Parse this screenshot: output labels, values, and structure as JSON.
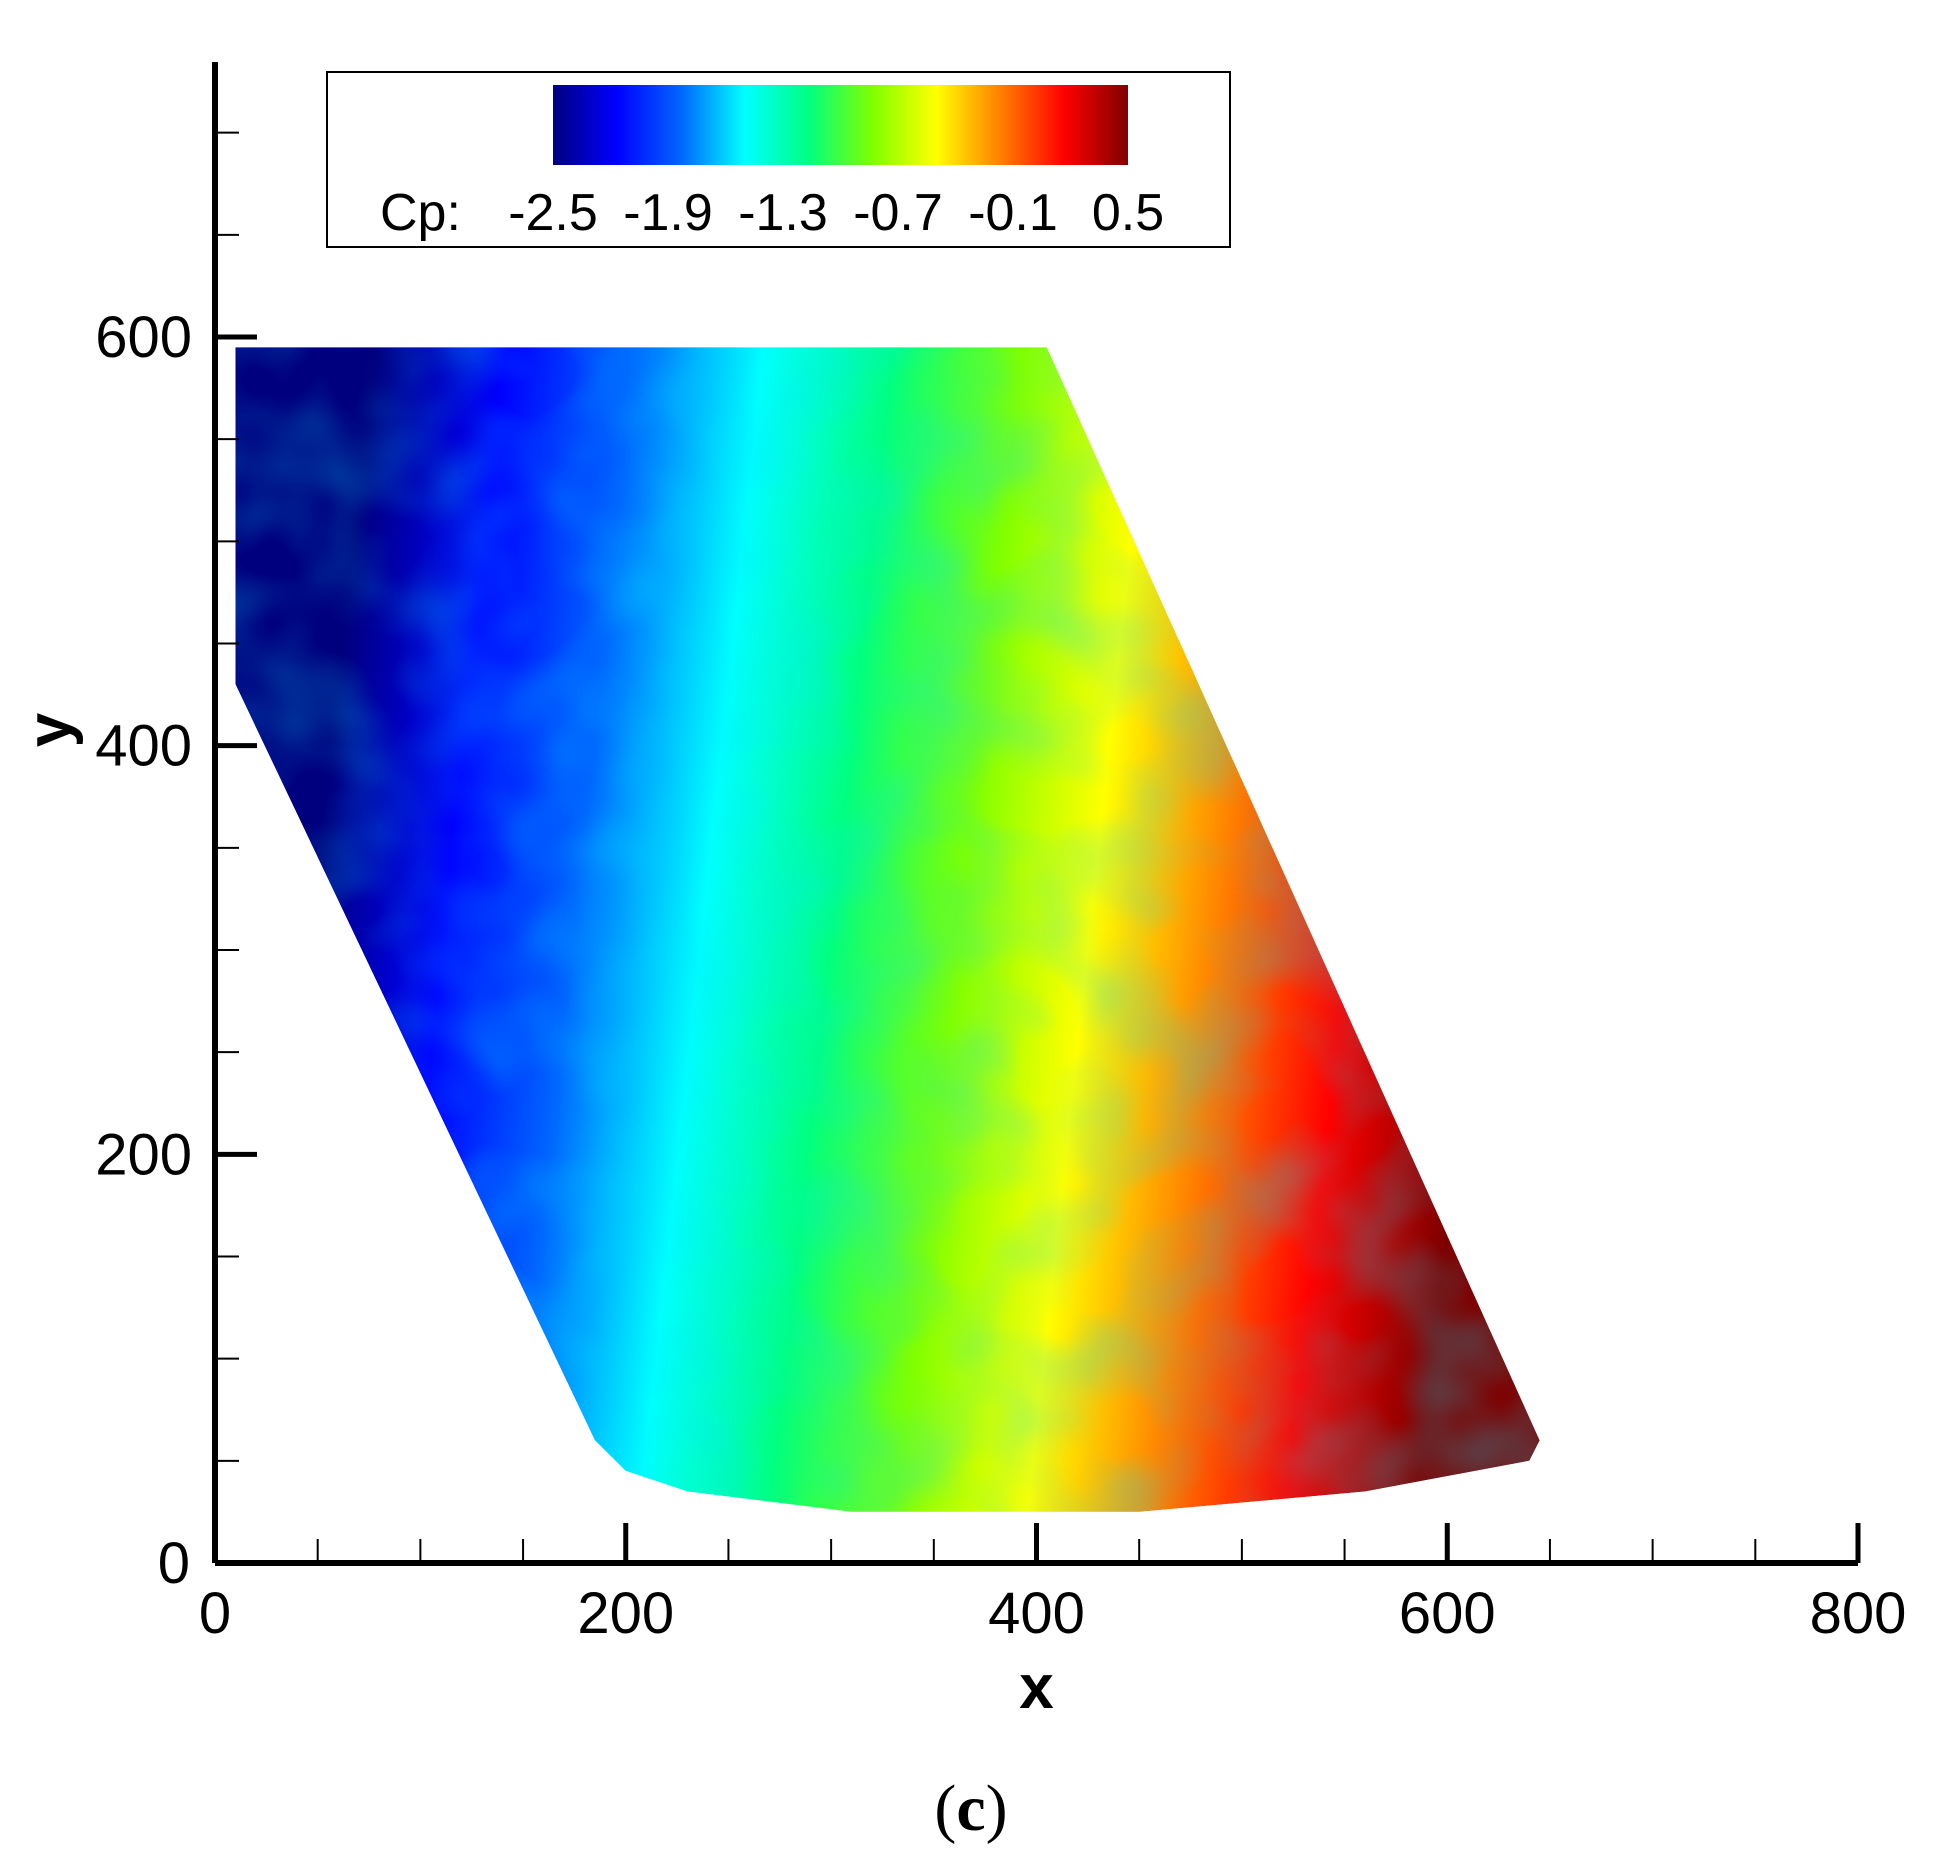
{
  "chart_data": {
    "type": "heatmap",
    "title": "",
    "xlabel": "x",
    "ylabel": "y",
    "xlim": [
      0,
      800
    ],
    "ylim": [
      0,
      600
    ],
    "x_ticks": [
      "0",
      "200",
      "400",
      "600",
      "800"
    ],
    "y_ticks": [
      "0",
      "200",
      "400",
      "600"
    ],
    "x_minor_step": 50,
    "y_minor_step": 50,
    "colorbar": {
      "variable": "Cp:",
      "ticks": [
        "-2.5",
        "-1.9",
        "-1.3",
        "-0.7",
        "-0.1",
        "0.5"
      ],
      "range": [
        -2.5,
        0.5
      ],
      "placement": "top",
      "colormap": [
        "#00007f",
        "#0000ff",
        "#0066ff",
        "#00ffff",
        "#00ff80",
        "#80ff00",
        "#ffff00",
        "#ff8000",
        "#ff0000",
        "#7f0000"
      ]
    },
    "field": {
      "description_values": "Cp rises from about -2.5 on the left edge to about 0.5 on the right edge",
      "domain_outline_xy": [
        [
          10,
          595
        ],
        [
          405,
          595
        ],
        [
          645,
          60
        ],
        [
          640,
          50
        ],
        [
          560,
          35
        ],
        [
          450,
          25
        ],
        [
          310,
          25
        ],
        [
          230,
          35
        ],
        [
          200,
          45
        ],
        [
          185,
          60
        ],
        [
          10,
          430
        ]
      ],
      "left_value": -2.5,
      "right_value": 0.5
    },
    "grid": false
  },
  "caption": {
    "open": "(",
    "letter": "c",
    "close": ")"
  },
  "colors": {
    "axis": "#000000",
    "background": "#ffffff"
  }
}
